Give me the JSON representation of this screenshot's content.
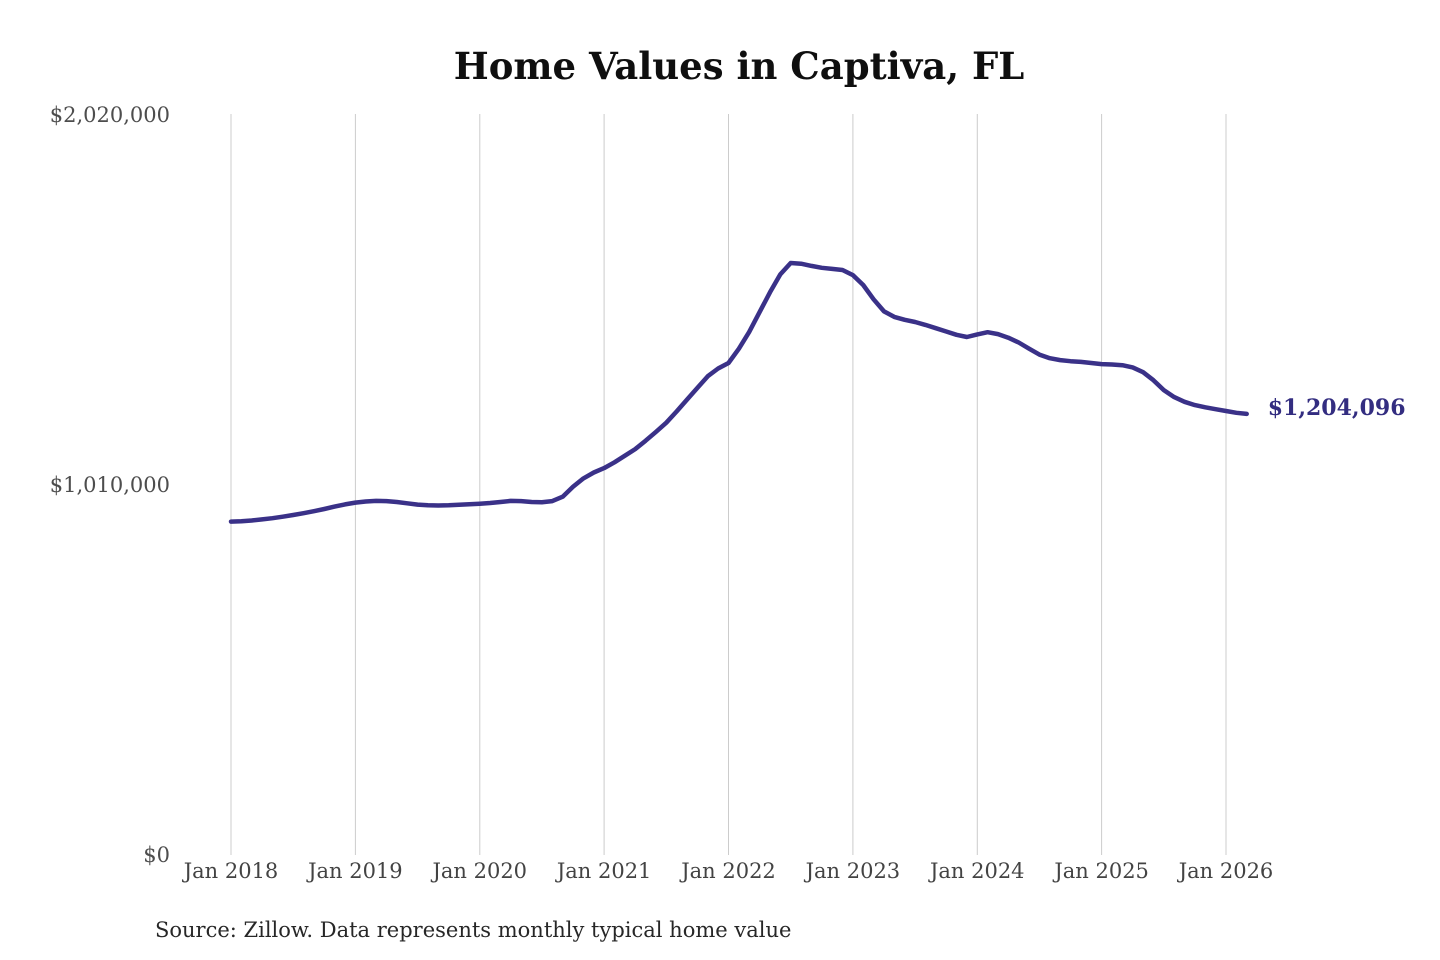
{
  "header": {
    "title": "Home Values in Captiva, FL"
  },
  "footer": {
    "source_note": "Source: Zillow. Data represents monthly typical home value"
  },
  "colors": {
    "accent": "#3a3188",
    "end_label_text": "#332d80",
    "gridline": "#cccccc",
    "axis_text": "#4d4d4d",
    "title_text": "#0f0f0f",
    "source_text": "#272727",
    "background": "#ffffff"
  },
  "chart_data": {
    "type": "line",
    "title": "Home Values in Captiva, FL",
    "xlabel": "",
    "ylabel": "",
    "ylim": [
      0,
      2020000
    ],
    "grid": "vertical-only",
    "legend": "none",
    "x_ticks": [
      "Jan 2018",
      "Jan 2019",
      "Jan 2020",
      "Jan 2021",
      "Jan 2022",
      "Jan 2023",
      "Jan 2024",
      "Jan 2025",
      "Jan 2026"
    ],
    "y_ticks": [
      {
        "value": 2020000,
        "label": "$2,020,000"
      },
      {
        "value": 1010000,
        "label": "$1,010,000"
      },
      {
        "value": 0,
        "label": "$0"
      }
    ],
    "end_label": "$1,204,096",
    "end_value": 1204096,
    "series": [
      {
        "name": "Monthly typical home value",
        "color": "#3a3188",
        "start_month": "2018-01",
        "frequency": "monthly",
        "values": [
          910000,
          911000,
          913000,
          916000,
          919500,
          923500,
          928000,
          933000,
          938500,
          944500,
          951000,
          957000,
          962000,
          965000,
          966500,
          966000,
          963500,
          960000,
          956500,
          954500,
          954000,
          954500,
          956000,
          957500,
          959000,
          961000,
          963500,
          966500,
          966000,
          963500,
          963000,
          966000,
          978000,
          1005000,
          1028000,
          1044000,
          1056000,
          1072000,
          1090000,
          1108000,
          1131000,
          1155000,
          1180000,
          1211000,
          1243000,
          1275000,
          1307000,
          1328000,
          1343000,
          1382000,
          1428000,
          1482000,
          1536000,
          1585000,
          1616000,
          1614000,
          1608000,
          1603000,
          1600000,
          1597000,
          1583000,
          1556000,
          1517000,
          1484000,
          1469000,
          1461000,
          1455000,
          1447000,
          1438000,
          1429000,
          1420000,
          1414000,
          1421000,
          1427000,
          1422000,
          1412000,
          1399000,
          1382000,
          1366000,
          1356000,
          1351000,
          1348000,
          1346000,
          1343000,
          1340000,
          1339000,
          1337000,
          1331000,
          1318000,
          1296000,
          1269000,
          1250000,
          1237000,
          1228000,
          1222000,
          1217000,
          1212000,
          1207000,
          1204096
        ]
      }
    ]
  }
}
